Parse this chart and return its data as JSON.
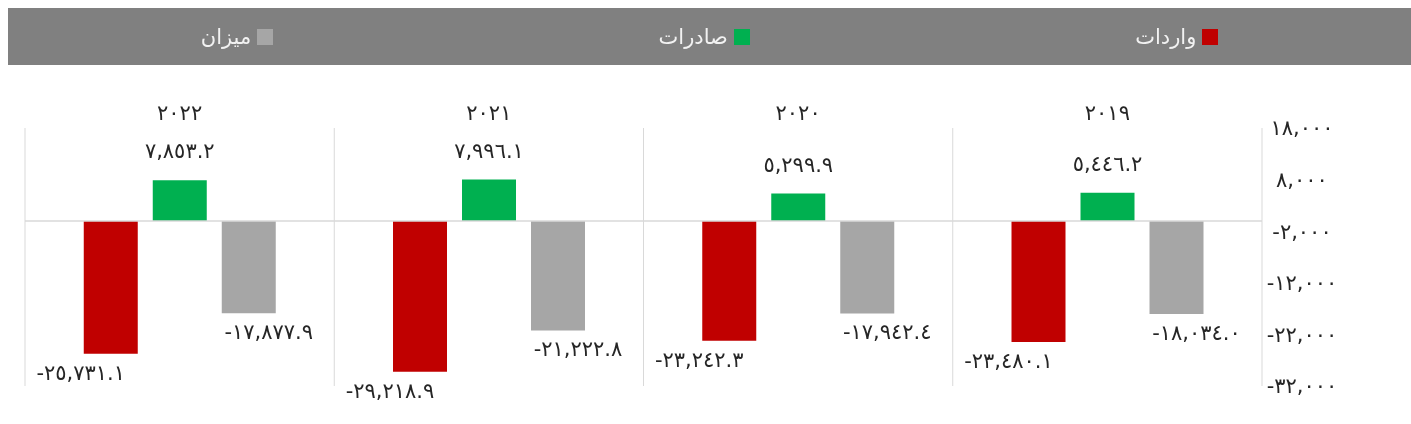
{
  "chart_data": {
    "type": "bar",
    "categories": [
      "٢٠٢٢",
      "٢٠٢١",
      "٢٠٢٠",
      "٢٠١٩"
    ],
    "series": [
      {
        "name": "واردات",
        "color": "#c00000",
        "values": [
          -25731.1,
          -29218.9,
          -23242.3,
          -23480.1
        ],
        "value_labels": [
          "-٢٥,٧٣١.١",
          "-٢٩,٢١٨.٩",
          "-٢٣,٢٤٢.٣",
          "-٢٣,٤٨٠.١"
        ]
      },
      {
        "name": "صادرات",
        "color": "#00b050",
        "values": [
          7853.2,
          7996.1,
          5299.9,
          5446.2
        ],
        "value_labels": [
          "٧,٨٥٣.٢",
          "٧,٩٩٦.١",
          "٥,٢٩٩.٩",
          "٥,٤٤٦.٢"
        ]
      },
      {
        "name": "میزان",
        "color": "#a6a6a6",
        "values": [
          -17877.9,
          -21222.8,
          -17942.4,
          -18034.0
        ],
        "value_labels": [
          "-١٧,٨٧٧.٩",
          "-٢١,٢٢٢.٨",
          "-١٧,٩٤٢.٤",
          "-١٨,٠٣٤.٠"
        ]
      }
    ],
    "ylim": [
      -32000,
      18000
    ],
    "yticks": [
      {
        "value": 18000,
        "label": "١٨,٠٠٠"
      },
      {
        "value": 8000,
        "label": "٨,٠٠٠"
      },
      {
        "value": -2000,
        "label": "-٢,٠٠٠"
      },
      {
        "value": -12000,
        "label": "-١٢,٠٠٠"
      },
      {
        "value": -22000,
        "label": "-٢٢,٠٠٠"
      },
      {
        "value": -32000,
        "label": "-٣٢,٠٠٠"
      }
    ],
    "ref_lines": [
      {
        "axis": "y",
        "value": 0,
        "color": "#d9d9d9"
      }
    ],
    "grid": "x",
    "legend": "top"
  }
}
